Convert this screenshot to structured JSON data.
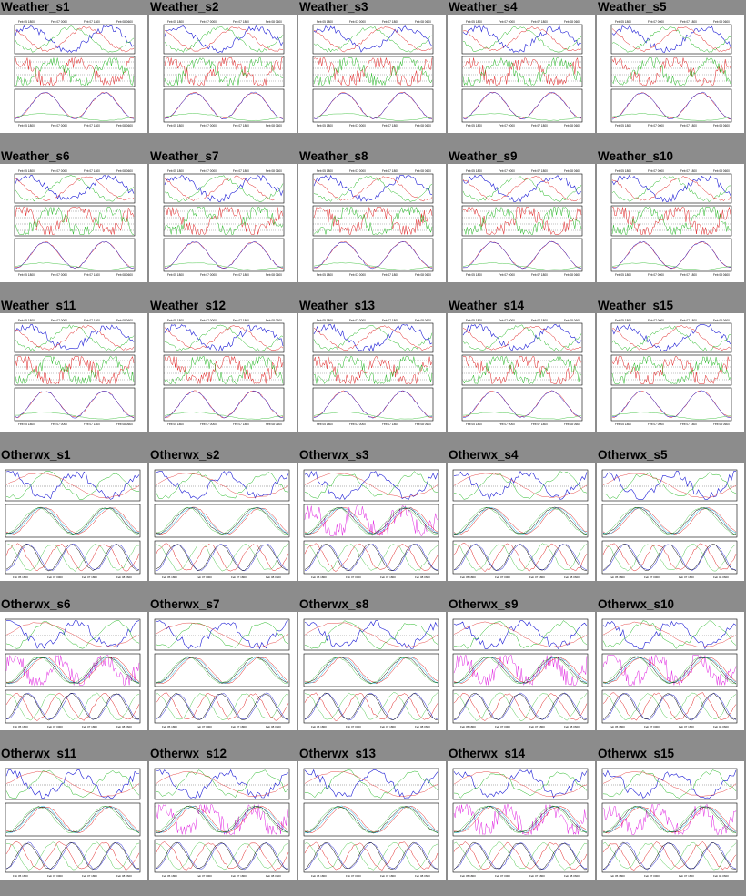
{
  "thumbnails": [
    {
      "name": "Weather_s1",
      "style": "weather"
    },
    {
      "name": "Weather_s2",
      "style": "weather"
    },
    {
      "name": "Weather_s3",
      "style": "weather"
    },
    {
      "name": "Weather_s4",
      "style": "weather"
    },
    {
      "name": "Weather_s5",
      "style": "weather"
    },
    {
      "name": "Weather_s6",
      "style": "weather"
    },
    {
      "name": "Weather_s7",
      "style": "weather"
    },
    {
      "name": "Weather_s8",
      "style": "weather"
    },
    {
      "name": "Weather_s9",
      "style": "weather"
    },
    {
      "name": "Weather_s10",
      "style": "weather"
    },
    {
      "name": "Weather_s11",
      "style": "weather"
    },
    {
      "name": "Weather_s12",
      "style": "weather"
    },
    {
      "name": "Weather_s13",
      "style": "weather"
    },
    {
      "name": "Weather_s14",
      "style": "weather"
    },
    {
      "name": "Weather_s15",
      "style": "weather"
    },
    {
      "name": "Otherwx_s1",
      "style": "otherwx"
    },
    {
      "name": "Otherwx_s2",
      "style": "otherwx"
    },
    {
      "name": "Otherwx_s3",
      "style": "otherwx"
    },
    {
      "name": "Otherwx_s4",
      "style": "otherwx"
    },
    {
      "name": "Otherwx_s5",
      "style": "otherwx"
    },
    {
      "name": "Otherwx_s6",
      "style": "otherwx"
    },
    {
      "name": "Otherwx_s7",
      "style": "otherwx"
    },
    {
      "name": "Otherwx_s8",
      "style": "otherwx"
    },
    {
      "name": "Otherwx_s9",
      "style": "otherwx"
    },
    {
      "name": "Otherwx_s10",
      "style": "otherwx"
    },
    {
      "name": "Otherwx_s11",
      "style": "otherwx"
    },
    {
      "name": "Otherwx_s12",
      "style": "otherwx"
    },
    {
      "name": "Otherwx_s13",
      "style": "otherwx"
    },
    {
      "name": "Otherwx_s14",
      "style": "otherwx"
    },
    {
      "name": "Otherwx_s15",
      "style": "otherwx"
    }
  ],
  "x_ticks": [
    "Feb 05 1800",
    "Feb 07 0000",
    "Feb 07 1800",
    "Feb 08 0600"
  ],
  "colors": {
    "background": "#8c8c8c",
    "blue": "#1f1fd6",
    "red": "#e02020",
    "green": "#22b822",
    "cyan": "#19b5e6",
    "magenta": "#e020e0",
    "black": "#000000"
  },
  "chart_data": {
    "type": "line",
    "note_series": [
      "blue",
      "red",
      "green",
      "cyan",
      "magenta"
    ]
  }
}
